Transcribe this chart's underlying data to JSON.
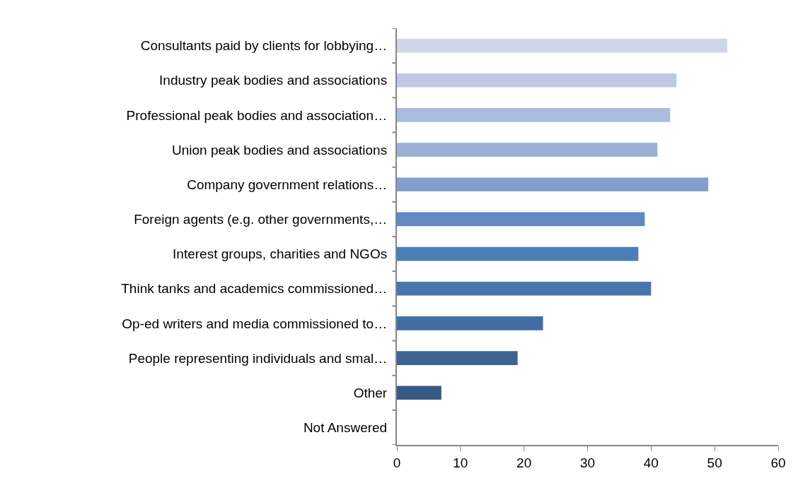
{
  "chart_data": {
    "type": "bar",
    "orientation": "horizontal",
    "categories": [
      "Consultants paid by clients for lobbying…",
      "Industry peak bodies and associations",
      "Professional peak bodies and association…",
      "Union peak bodies and associations",
      "Company government relations…",
      "Foreign agents (e.g. other governments,…",
      "Interest groups, charities and NGOs",
      "Think tanks and academics commissioned…",
      "Op-ed writers and media commissioned to…",
      "People representing individuals and smal…",
      "Other",
      "Not Answered"
    ],
    "values": [
      52,
      44,
      43,
      41,
      49,
      39,
      38,
      40,
      23,
      19,
      7,
      0
    ],
    "colors": [
      "#cfd7e7",
      "#bdcae2",
      "#abbbdb",
      "#9aafd4",
      "#839fcb",
      "#6189c2",
      "#4d7eb8",
      "#4775ae",
      "#436ea3",
      "#3d6493",
      "#375a85",
      "#335080"
    ],
    "xlim": [
      0,
      60
    ],
    "xticks": [
      0,
      10,
      20,
      30,
      40,
      50,
      60
    ]
  }
}
